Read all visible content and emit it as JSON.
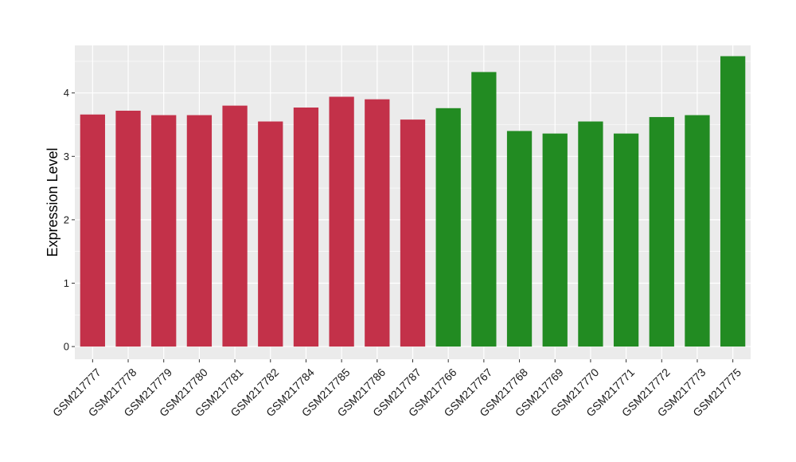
{
  "chart_data": {
    "type": "bar",
    "title": "",
    "xlabel": "",
    "ylabel": "Expression Level",
    "ylim": [
      -0.2,
      4.75
    ],
    "yticks": [
      0,
      1,
      2,
      3,
      4
    ],
    "grid": true,
    "legend": "none",
    "categories": [
      "GSM217777",
      "GSM217778",
      "GSM217779",
      "GSM217780",
      "GSM217781",
      "GSM217782",
      "GSM217784",
      "GSM217785",
      "GSM217786",
      "GSM217787",
      "GSM217766",
      "GSM217767",
      "GSM217768",
      "GSM217769",
      "GSM217770",
      "GSM217771",
      "GSM217772",
      "GSM217773",
      "GSM217775"
    ],
    "values": [
      3.66,
      3.72,
      3.65,
      3.65,
      3.8,
      3.55,
      3.77,
      3.94,
      3.9,
      3.58,
      3.76,
      4.33,
      3.4,
      3.36,
      3.55,
      3.36,
      3.62,
      3.65,
      4.58
    ],
    "groups": [
      "a",
      "a",
      "a",
      "a",
      "a",
      "a",
      "a",
      "a",
      "a",
      "a",
      "b",
      "b",
      "b",
      "b",
      "b",
      "b",
      "b",
      "b",
      "b"
    ],
    "group_colors": {
      "a": "#C33149",
      "b": "#228B22"
    },
    "panel_background": "#EBEBEB",
    "gridline_color": "#FFFFFF"
  }
}
